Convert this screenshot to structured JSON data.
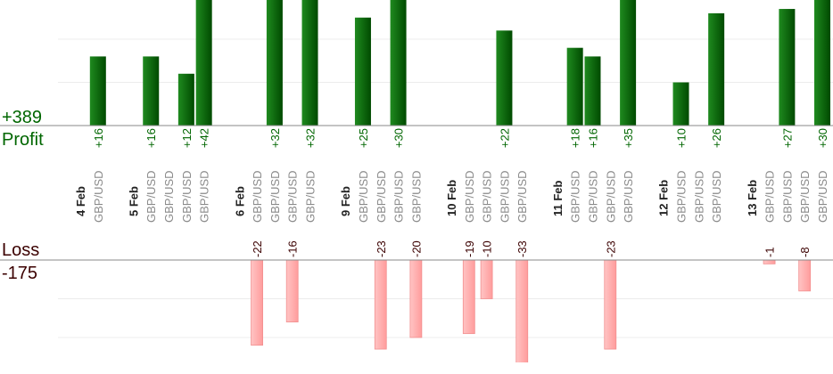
{
  "chart_data": {
    "type": "bar",
    "profit": {
      "label": "Profit",
      "total": "+389",
      "color": "#006600"
    },
    "loss": {
      "label": "Loss",
      "total": "-175",
      "color": "#3b0000"
    },
    "days": [
      {
        "date": "4 Feb",
        "trades": [
          {
            "pair": "GBP/USD",
            "value": 16
          }
        ]
      },
      {
        "date": "5 Feb",
        "trades": [
          {
            "pair": "GBP/USD",
            "value": 16
          },
          {
            "pair": "GBP/USD",
            "value": null
          },
          {
            "pair": "GBP/USD",
            "value": 12
          },
          {
            "pair": "GBP/USD",
            "value": 42
          }
        ]
      },
      {
        "date": "6 Feb",
        "trades": [
          {
            "pair": "GBP/USD",
            "value": -22
          },
          {
            "pair": "GBP/USD",
            "value": 32
          },
          {
            "pair": "GBP/USD",
            "value": -16
          },
          {
            "pair": "GBP/USD",
            "value": 32
          }
        ]
      },
      {
        "date": "9 Feb",
        "trades": [
          {
            "pair": "GBP/USD",
            "value": 25
          },
          {
            "pair": "GBP/USD",
            "value": -23
          },
          {
            "pair": "GBP/USD",
            "value": 30
          },
          {
            "pair": "GBP/USD",
            "value": -20
          }
        ]
      },
      {
        "date": "10 Feb",
        "trades": [
          {
            "pair": "GBP/USD",
            "value": -19
          },
          {
            "pair": "GBP/USD",
            "value": -10
          },
          {
            "pair": "GBP/USD",
            "value": 22
          },
          {
            "pair": "GBP/USD",
            "value": -33
          }
        ]
      },
      {
        "date": "11 Feb",
        "trades": [
          {
            "pair": "GBP/USD",
            "value": 18
          },
          {
            "pair": "GBP/USD",
            "value": 16
          },
          {
            "pair": "GBP/USD",
            "value": -23
          },
          {
            "pair": "GBP/USD",
            "value": 35
          }
        ]
      },
      {
        "date": "12 Feb",
        "trades": [
          {
            "pair": "GBP/USD",
            "value": 10
          },
          {
            "pair": "GBP/USD",
            "value": null
          },
          {
            "pair": "GBP/USD",
            "value": 26
          }
        ]
      },
      {
        "date": "13 Feb",
        "trades": [
          {
            "pair": "GBP/USD",
            "value": -1
          },
          {
            "pair": "GBP/USD",
            "value": 27
          },
          {
            "pair": "GBP/USD",
            "value": -8
          },
          {
            "pair": "GBP/USD",
            "value": 30
          }
        ]
      }
    ],
    "grid": true,
    "colors": {
      "profit_bar": "#006600",
      "loss_bar": "#ffaaaa",
      "profit_text": "#006600",
      "loss_text": "#3b0000"
    }
  }
}
